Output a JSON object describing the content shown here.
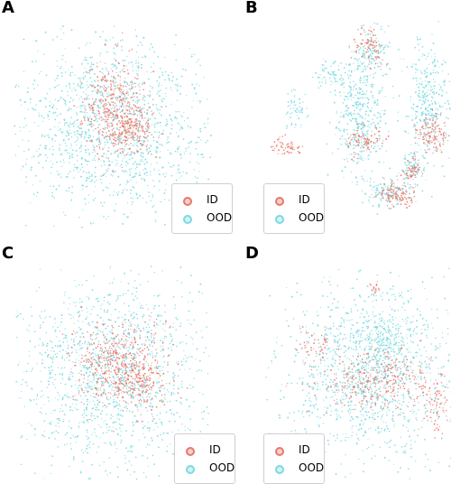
{
  "colors": {
    "id": "#e8786b",
    "ood": "#7dd9e0"
  },
  "legend": {
    "id_label": "ID",
    "ood_label": "OOD"
  },
  "chart_data": [
    {
      "type": "scatter",
      "panel": "A",
      "series": [
        {
          "name": "ID",
          "clusters": [
            {
              "cx": 0.0,
              "cy": 0.7,
              "sx": 0.6,
              "sy": 1.0,
              "n": 420
            },
            {
              "cx": 0.9,
              "cy": -0.1,
              "sx": 0.4,
              "sy": 0.5,
              "n": 160
            }
          ]
        },
        {
          "name": "OOD",
          "clusters": [
            {
              "cx": 0.0,
              "cy": 0.0,
              "sx": 2.1,
              "sy": 1.8,
              "n": 1500
            }
          ]
        }
      ],
      "xlim": [
        -4,
        4
      ],
      "ylim": [
        -4,
        4
      ],
      "legend_position": "bottom-right"
    },
    {
      "type": "scatter",
      "panel": "B",
      "series": [
        {
          "name": "ID",
          "clusters": [
            {
              "cx": 0.5,
              "cy": 3.0,
              "sx": 0.35,
              "sy": 0.4,
              "n": 90
            },
            {
              "cx": -3.1,
              "cy": -0.9,
              "sx": 0.3,
              "sy": 0.2,
              "n": 60
            },
            {
              "cx": 1.6,
              "cy": -2.7,
              "sx": 0.35,
              "sy": 0.25,
              "n": 110
            },
            {
              "cx": 3.2,
              "cy": -0.4,
              "sx": 0.35,
              "sy": 0.35,
              "n": 110
            },
            {
              "cx": 2.3,
              "cy": -1.8,
              "sx": 0.2,
              "sy": 0.25,
              "n": 50
            },
            {
              "cx": 0.2,
              "cy": -0.6,
              "sx": 0.4,
              "sy": 0.3,
              "n": 80
            }
          ]
        },
        {
          "name": "OOD",
          "clusters": [
            {
              "cx": 0.6,
              "cy": 2.8,
              "sx": 0.45,
              "sy": 0.5,
              "n": 120
            },
            {
              "cx": -1.0,
              "cy": 2.0,
              "sx": 0.5,
              "sy": 0.3,
              "n": 80
            },
            {
              "cx": -2.7,
              "cy": 0.5,
              "sx": 0.25,
              "sy": 0.4,
              "n": 60
            },
            {
              "cx": 0.1,
              "cy": 0.2,
              "sx": 0.5,
              "sy": 1.1,
              "n": 420
            },
            {
              "cx": 3.0,
              "cy": 0.8,
              "sx": 0.45,
              "sy": 1.1,
              "n": 330
            },
            {
              "cx": 2.3,
              "cy": -1.8,
              "sx": 0.25,
              "sy": 0.35,
              "n": 80
            },
            {
              "cx": 1.2,
              "cy": -2.7,
              "sx": 0.5,
              "sy": 0.3,
              "n": 120
            }
          ]
        }
      ],
      "xlim": [
        -4,
        4
      ],
      "ylim": [
        -4,
        4
      ],
      "legend_position": "bottom-right"
    },
    {
      "type": "scatter",
      "panel": "C",
      "series": [
        {
          "name": "ID",
          "clusters": [
            {
              "cx": 0.3,
              "cy": 0.3,
              "sx": 1.0,
              "sy": 0.8,
              "n": 520
            },
            {
              "cx": 1.2,
              "cy": -0.4,
              "sx": 0.5,
              "sy": 0.4,
              "n": 100
            }
          ]
        },
        {
          "name": "OOD",
          "clusters": [
            {
              "cx": 0.0,
              "cy": 0.0,
              "sx": 2.0,
              "sy": 1.9,
              "n": 1500
            }
          ]
        }
      ],
      "xlim": [
        -4,
        4
      ],
      "ylim": [
        -4,
        4
      ],
      "legend_position": "bottom-right"
    },
    {
      "type": "scatter",
      "panel": "D",
      "series": [
        {
          "name": "ID",
          "clusters": [
            {
              "cx": 0.8,
              "cy": -0.4,
              "sx": 1.2,
              "sy": 0.6,
              "n": 320
            },
            {
              "cx": -1.7,
              "cy": 1.1,
              "sx": 0.4,
              "sy": 0.3,
              "n": 50
            },
            {
              "cx": 3.3,
              "cy": -1.2,
              "sx": 0.3,
              "sy": 0.5,
              "n": 70
            },
            {
              "cx": 0.7,
              "cy": 3.2,
              "sx": 0.15,
              "sy": 0.15,
              "n": 15
            }
          ]
        },
        {
          "name": "OOD",
          "clusters": [
            {
              "cx": 0.5,
              "cy": 0.0,
              "sx": 2.0,
              "sy": 1.7,
              "n": 1300
            },
            {
              "cx": 1.1,
              "cy": 1.3,
              "sx": 0.8,
              "sy": 0.6,
              "n": 200
            }
          ]
        }
      ],
      "xlim": [
        -4,
        4
      ],
      "ylim": [
        -4,
        4
      ],
      "legend_position": "bottom-right"
    }
  ]
}
